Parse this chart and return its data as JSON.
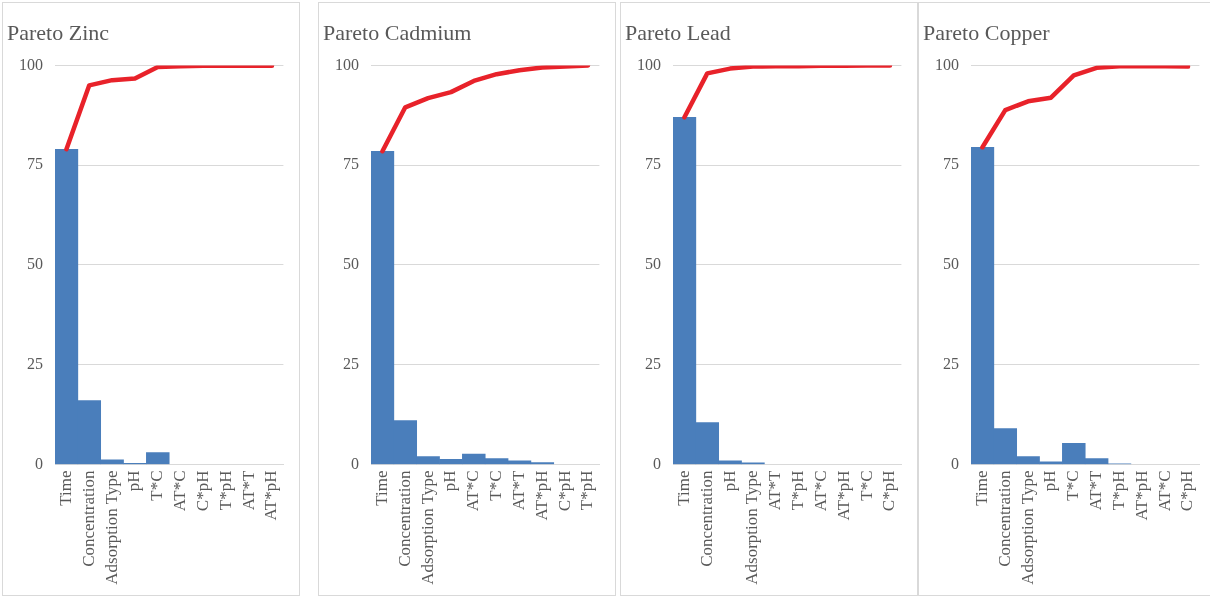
{
  "chart_data": [
    {
      "type": "bar",
      "title": "Pareto Zinc",
      "categories": [
        "Time",
        "Concentration",
        "Adsorption Type",
        "pH",
        "T*C",
        "AT*C",
        "C*pH",
        "T*pH",
        "AT*T",
        "AT*pH"
      ],
      "series": [
        {
          "color": "#4a7ebb",
          "values": [
            79,
            16,
            1.2,
            0.3,
            3,
            null,
            null,
            null,
            null,
            null
          ]
        },
        {
          "type": "line",
          "color": "#e8222a",
          "values": [
            79,
            95,
            96.3,
            96.7,
            99.6,
            99.8,
            99.9,
            99.9,
            99.9,
            99.9
          ]
        }
      ],
      "ylim": [
        0,
        100
      ],
      "yticks": [
        0,
        25,
        50,
        75,
        100
      ],
      "grid": "y"
    },
    {
      "type": "bar",
      "title": "Pareto Cadmium",
      "categories": [
        "Time",
        "Concentration",
        "Adsorption Type",
        "pH",
        "AT*C",
        "T*C",
        "AT*T",
        "AT*pH",
        "C*pH",
        "T*pH"
      ],
      "series": [
        {
          "color": "#4a7ebb",
          "values": [
            78.5,
            11,
            2,
            1.3,
            2.6,
            1.5,
            0.9,
            0.5,
            null,
            null
          ]
        },
        {
          "type": "line",
          "color": "#e8222a",
          "values": [
            78.5,
            89.5,
            91.8,
            93.3,
            96.1,
            97.8,
            98.8,
            99.5,
            99.7,
            100
          ]
        }
      ],
      "ylim": [
        0,
        100
      ],
      "yticks": [
        0,
        25,
        50,
        75,
        100
      ],
      "grid": "y"
    },
    {
      "type": "bar",
      "title": "Pareto Lead",
      "categories": [
        "Time",
        "Concentration",
        "pH",
        "Adsorption Type",
        "AT*T",
        "T*pH",
        "AT*C",
        "AT*pH",
        "T*C",
        "C*pH"
      ],
      "series": [
        {
          "color": "#4a7ebb",
          "values": [
            87,
            10.5,
            0.9,
            0.4,
            null,
            null,
            null,
            null,
            null,
            null
          ]
        },
        {
          "type": "line",
          "color": "#e8222a",
          "values": [
            87,
            98,
            99.2,
            99.7,
            99.8,
            99.8,
            99.9,
            99.9,
            100,
            100
          ]
        }
      ],
      "ylim": [
        0,
        100
      ],
      "yticks": [
        0,
        25,
        50,
        75,
        100
      ],
      "grid": "y"
    },
    {
      "type": "bar",
      "title": "Pareto Copper",
      "categories": [
        "Time",
        "Concentration",
        "Adsorption Type",
        "pH",
        "T*C",
        "AT*T",
        "T*pH",
        "AT*pH",
        "AT*C",
        "C*pH"
      ],
      "series": [
        {
          "color": "#4a7ebb",
          "values": [
            79.5,
            9,
            2,
            0.7,
            5.3,
            1.5,
            0.2,
            null,
            null,
            null
          ]
        },
        {
          "type": "line",
          "color": "#e8222a",
          "values": [
            79.5,
            88.8,
            91,
            91.9,
            97.5,
            99.4,
            99.8,
            99.8,
            99.8,
            99.7
          ]
        }
      ],
      "ylim": [
        0,
        100
      ],
      "yticks": [
        0,
        25,
        50,
        75,
        100
      ],
      "grid": "y"
    }
  ]
}
